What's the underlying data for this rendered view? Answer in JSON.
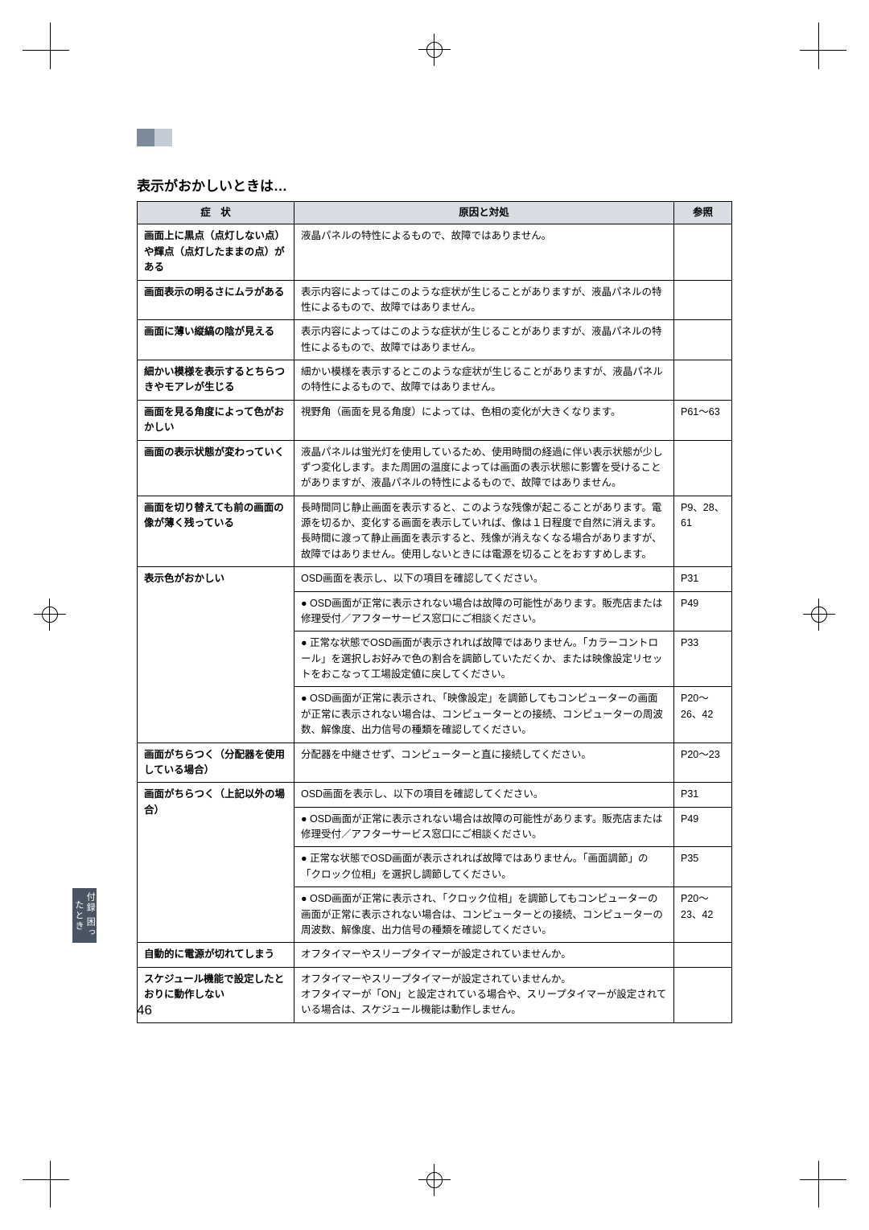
{
  "section_title": "表示がおかしいときは…",
  "side_tab": "付録\n困ったとき",
  "page_number": "46",
  "headers": {
    "symptom": "症　状",
    "cause": "原因と対処",
    "ref": "参照"
  },
  "rows": [
    {
      "symptom": "画面上に黒点（点灯しない点）や輝点（点灯したままの点）がある",
      "cause": "液晶パネルの特性によるもので、故障ではありません。",
      "ref": ""
    },
    {
      "symptom": "画面表示の明るさにムラがある",
      "cause": "表示内容によってはこのような症状が生じることがありますが、液晶パネルの特性によるもので、故障ではありません。",
      "ref": ""
    },
    {
      "symptom": "画面に薄い縦縞の陰が見える",
      "cause": "表示内容によってはこのような症状が生じることがありますが、液晶パネルの特性によるもので、故障ではありません。",
      "ref": ""
    },
    {
      "symptom": "細かい模様を表示するとちらつきやモアレが生じる",
      "cause": "細かい模様を表示するとこのような症状が生じることがありますが、液晶パネルの特性によるもので、故障ではありません。",
      "ref": ""
    },
    {
      "symptom": "画面を見る角度によって色がおかしい",
      "cause": "視野角（画面を見る角度）によっては、色相の変化が大きくなります。",
      "ref": "P61～63"
    },
    {
      "symptom": "画面の表示状態が変わっていく",
      "cause": "液晶パネルは蛍光灯を使用しているため、使用時間の経過に伴い表示状態が少しずつ変化します。また周囲の温度によっては画面の表示状態に影響を受けることがありますが、液晶パネルの特性によるもので、故障ではありません。",
      "ref": ""
    },
    {
      "symptom": "画面を切り替えても前の画面の像が薄く残っている",
      "cause": "長時間同じ静止画面を表示すると、このような残像が起こることがあります。電源を切るか、変化する画面を表示していれば、像は１日程度で自然に消えます。長時間に渡って静止画面を表示すると、残像が消えなくなる場合がありますが、故障ではありません。使用しないときには電源を切ることをおすすめします。",
      "ref": "P9、28、61"
    },
    {
      "symptom": "表示色がおかしい",
      "cells": [
        {
          "cause": "OSD画面を表示し、以下の項目を確認してください。",
          "ref": "P31"
        },
        {
          "cause": "● OSD画面が正常に表示されない場合は故障の可能性があります。販売店または修理受付／アフターサービス窓口にご相談ください。",
          "ref": "P49"
        },
        {
          "cause": "● 正常な状態でOSD画面が表示されれば故障ではありません。「カラーコントロール」を選択しお好みで色の割合を調節していただくか、または映像設定リセットをおこなって工場設定値に戻してください。",
          "ref": "P33"
        },
        {
          "cause": "● OSD画面が正常に表示され、「映像設定」を調節してもコンピューターの画面が正常に表示されない場合は、コンピューターとの接続、コンピューターの周波数、解像度、出力信号の種類を確認してください。",
          "ref": "P20～26、42"
        }
      ]
    },
    {
      "symptom": "画面がちらつく（分配器を使用している場合）",
      "cause": "分配器を中継させず、コンピューターと直に接続してください。",
      "ref": "P20～23"
    },
    {
      "symptom": "画面がちらつく（上記以外の場合）",
      "cells": [
        {
          "cause": "OSD画面を表示し、以下の項目を確認してください。",
          "ref": "P31"
        },
        {
          "cause": "● OSD画面が正常に表示されない場合は故障の可能性があります。販売店または修理受付／アフターサービス窓口にご相談ください。",
          "ref": "P49"
        },
        {
          "cause": "● 正常な状態でOSD画面が表示されれば故障ではありません。「画面調節」の「クロック位相」を選択し調節してください。",
          "ref": "P35"
        },
        {
          "cause": "● OSD画面が正常に表示され、「クロック位相」を調節してもコンピューターの画面が正常に表示されない場合は、コンピューターとの接続、コンピューターの周波数、解像度、出力信号の種類を確認してください。",
          "ref": "P20～23、42"
        }
      ]
    },
    {
      "symptom": "自動的に電源が切れてしまう",
      "cause": "オフタイマーやスリープタイマーが設定されていませんか。",
      "ref": ""
    },
    {
      "symptom": "スケジュール機能で設定したとおりに動作しない",
      "cause": "オフタイマーやスリープタイマーが設定されていませんか。\nオフタイマーが「ON」と設定されている場合や、スリープタイマーが設定されている場合は、スケジュール機能は動作しません。",
      "ref": ""
    }
  ]
}
